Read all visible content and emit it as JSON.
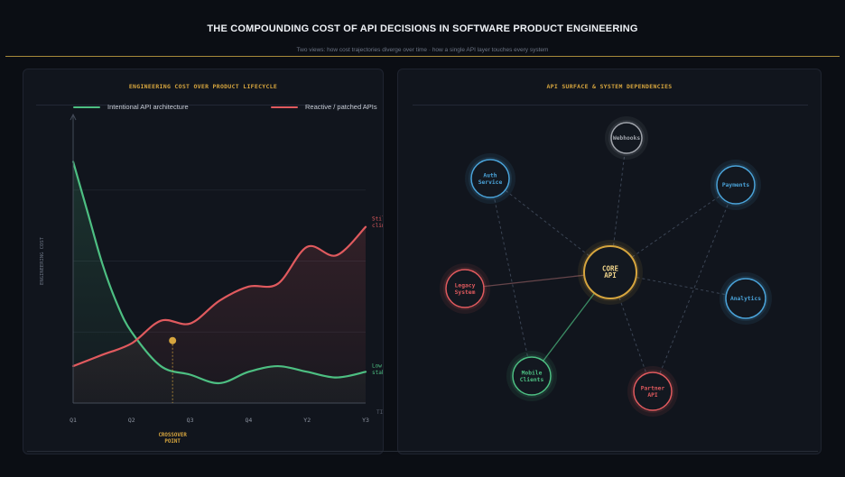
{
  "page": {
    "title": "THE COMPOUNDING COST OF API DECISIONS IN SOFTWARE PRODUCT ENGINEERING",
    "subtitle": "Two views: how cost trajectories diverge over time · how a single API layer touches every system"
  },
  "chart_data": {
    "type": "line",
    "title": "ENGINEERING COST OVER PRODUCT LIFECYCLE",
    "ylabel": "ENGINEERING COST",
    "xlabel": "TIME →",
    "categories": [
      "Q1",
      "Q2",
      "Q3",
      "Q4",
      "Y2",
      "Y3"
    ],
    "x": [
      0,
      1,
      2,
      3,
      4,
      5
    ],
    "ylim": [
      0,
      100
    ],
    "series": [
      {
        "name": "Intentional API architecture",
        "color": "#4dbf82",
        "x": [
          0,
          0.25,
          0.5,
          0.75,
          1,
          1.5,
          2,
          2.5,
          3,
          3.5,
          4,
          4.5,
          5
        ],
        "values": [
          85,
          67,
          49,
          35,
          25,
          13,
          10,
          7,
          11,
          13,
          11,
          9,
          11
        ],
        "end_label": "Low & stable"
      },
      {
        "name": "Reactive / patched APIs",
        "color": "#e05a5e",
        "x": [
          0,
          0.5,
          1,
          1.5,
          2,
          2.5,
          3,
          3.5,
          4,
          4.5,
          5
        ],
        "values": [
          13,
          17,
          21,
          29,
          28,
          36,
          41,
          42,
          55,
          52,
          62
        ],
        "end_label": "Still climbing"
      }
    ],
    "crossover": {
      "x": 1.7,
      "y": 22,
      "label": "CROSSOVER POINT"
    },
    "grid": true,
    "legend": "top"
  },
  "diagram": {
    "title": "API SURFACE & SYSTEM DEPENDENCIES",
    "core": {
      "id": "core",
      "label": "CORE API",
      "color": "#d6a53e"
    },
    "nodes": [
      {
        "id": "webhooks",
        "label": "Webhooks",
        "color": "#a0a4ab"
      },
      {
        "id": "auth",
        "label": "Auth Service",
        "color": "#4aa3d9"
      },
      {
        "id": "payments",
        "label": "Payments",
        "color": "#4aa3d9"
      },
      {
        "id": "legacy",
        "label": "Legacy System",
        "color": "#e05a5e"
      },
      {
        "id": "analytics",
        "label": "Analytics",
        "color": "#4aa3d9"
      },
      {
        "id": "mobile",
        "label": "Mobile Clients",
        "color": "#4dbf82"
      },
      {
        "id": "partner",
        "label": "Partner API",
        "color": "#e05a5e"
      }
    ]
  }
}
